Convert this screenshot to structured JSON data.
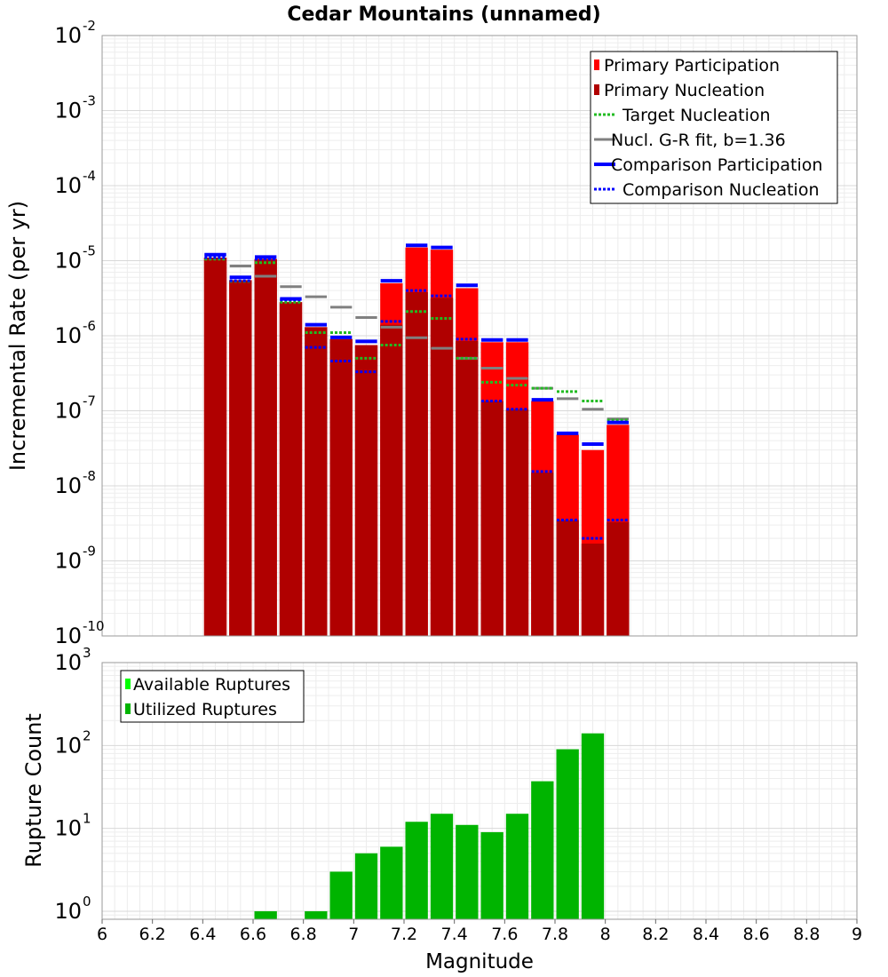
{
  "chart_data": [
    {
      "type": "bar",
      "title": "Cedar Mountains (unnamed)",
      "xlabel": "",
      "ylabel": "Incremental Rate (per yr)",
      "y_scale": "log",
      "xlim": [
        6,
        9
      ],
      "ylim": [
        1e-10,
        0.01
      ],
      "grid": true,
      "legend_position": "top-right",
      "bin_width": 0.1,
      "colors": {
        "primary_participation": "#ff0000",
        "primary_nucleation": "#b00000",
        "target_nucleation": "#22bb22",
        "gr_fit": "#808080",
        "comparison": "#0000ff"
      },
      "legend": [
        {
          "key": "primary_participation",
          "label": "Primary Participation",
          "style": "bar"
        },
        {
          "key": "primary_nucleation",
          "label": "Primary Nucleation",
          "style": "bar"
        },
        {
          "key": "target_nucleation",
          "label": "Target Nucleation",
          "style": "dotted"
        },
        {
          "key": "gr_fit",
          "label": "Nucl. G-R fit, b=1.36",
          "style": "solid"
        },
        {
          "key": "comparison_participation",
          "label": "Comparison Participation",
          "style": "thick"
        },
        {
          "key": "comparison_nucleation",
          "label": "Comparison Nucleation",
          "style": "dotted-blue"
        }
      ],
      "x": [
        6.45,
        6.55,
        6.65,
        6.75,
        6.85,
        6.95,
        7.05,
        7.15,
        7.25,
        7.35,
        7.45,
        7.55,
        7.65,
        7.75,
        7.85,
        7.95,
        8.05
      ],
      "series": [
        {
          "name": "Primary Participation",
          "values": [
            1.1e-05,
            5.5e-06,
            1.05e-05,
            2.8e-06,
            1.3e-06,
            9e-07,
            7.5e-07,
            5e-06,
            1.5e-05,
            1.4e-05,
            4.3e-06,
            8.2e-07,
            8.2e-07,
            1.35e-07,
            4.8e-08,
            3e-08,
            6.5e-08
          ]
        },
        {
          "name": "Primary Nucleation",
          "values": [
            1.1e-05,
            5.5e-06,
            1.05e-05,
            2.8e-06,
            1.3e-06,
            9e-07,
            7.5e-07,
            1.4e-06,
            3.8e-06,
            3.2e-06,
            8.5e-07,
            1.35e-07,
            1.05e-07,
            1.5e-08,
            3.5e-09,
            1.7e-09,
            3.3e-09
          ]
        },
        {
          "name": "Target Nucleation",
          "values": [
            1.05e-05,
            5.3e-06,
            9.4e-06,
            2.8e-06,
            1.1e-06,
            1.1e-06,
            5e-07,
            7.5e-07,
            2.1e-06,
            1.7e-06,
            5e-07,
            2.4e-07,
            2.2e-07,
            2e-07,
            1.8e-07,
            1.35e-07,
            7.5e-08
          ]
        },
        {
          "name": "Nucl. G-R fit, b=1.36",
          "values": [
            1.2e-05,
            8.5e-06,
            6.2e-06,
            4.5e-06,
            3.3e-06,
            2.4e-06,
            1.75e-06,
            1.3e-06,
            9.4e-07,
            6.8e-07,
            5e-07,
            3.7e-07,
            2.7e-07,
            2e-07,
            1.45e-07,
            1.05e-07,
            7.8e-08
          ]
        },
        {
          "name": "Comparison Participation",
          "values": [
            1.2e-05,
            6e-06,
            1.12e-05,
            3.1e-06,
            1.4e-06,
            9.5e-07,
            8.4e-07,
            5.4e-06,
            1.6e-05,
            1.5e-05,
            4.7e-06,
            8.8e-07,
            8.8e-07,
            1.4e-07,
            5e-08,
            3.6e-08,
            7e-08
          ]
        },
        {
          "name": "Comparison Nucleation",
          "values": [
            1.1e-05,
            5.4e-06,
            1.05e-05,
            3e-06,
            7e-07,
            4.6e-07,
            3.3e-07,
            1.55e-06,
            4e-06,
            3.4e-06,
            9e-07,
            1.35e-07,
            1.05e-07,
            1.55e-08,
            3.5e-09,
            2e-09,
            3.5e-09
          ]
        }
      ]
    },
    {
      "type": "bar",
      "title": "",
      "xlabel": "Magnitude",
      "ylabel": "Rupture Count",
      "y_scale": "log",
      "xlim": [
        6,
        9
      ],
      "ylim": [
        0.8,
        1000
      ],
      "grid": true,
      "legend_position": "top-left",
      "bin_width": 0.1,
      "colors": {
        "available": "#00ff00",
        "utilized": "#00b400"
      },
      "legend": [
        {
          "key": "available",
          "label": "Available Ruptures"
        },
        {
          "key": "utilized",
          "label": "Utilized Ruptures"
        }
      ],
      "x": [
        6.65,
        6.85,
        6.95,
        7.05,
        7.15,
        7.25,
        7.35,
        7.45,
        7.55,
        7.65,
        7.75,
        7.85,
        7.95
      ],
      "series": [
        {
          "name": "Utilized Ruptures",
          "values": [
            1,
            1,
            3,
            5,
            6,
            12,
            15,
            11,
            9,
            15,
            37,
            90,
            140
          ]
        }
      ],
      "x_ticks": [
        "6",
        "6.2",
        "6.4",
        "6.6",
        "6.8",
        "7",
        "7.2",
        "7.4",
        "7.6",
        "7.8",
        "8",
        "8.2",
        "8.4",
        "8.6",
        "8.8",
        "9"
      ],
      "y_tick_exponents": [
        "0",
        "1",
        "2",
        "3"
      ]
    }
  ]
}
